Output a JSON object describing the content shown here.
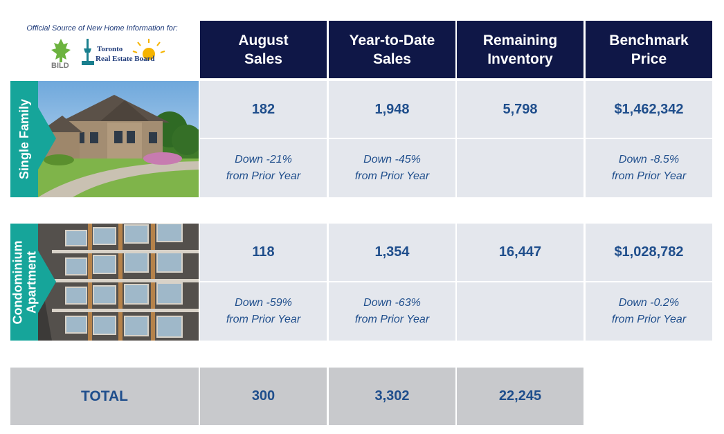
{
  "source_text": "Official Source of New Home Information for:",
  "logos": {
    "bild": "BILD",
    "treb_line1": "Toronto",
    "treb_line2": "Real Estate Board"
  },
  "headers": [
    {
      "line1": "August",
      "line2": "Sales"
    },
    {
      "line1": "Year-to-Date",
      "line2": "Sales"
    },
    {
      "line1": "Remaining",
      "line2": "Inventory"
    },
    {
      "line1": "Benchmark",
      "line2": "Price"
    }
  ],
  "rows": [
    {
      "label": "Single Family",
      "values": [
        "182",
        "1,948",
        "5,798",
        "$1,462,342"
      ],
      "changes": [
        {
          "line1": "Down -21%",
          "line2": "from Prior Year"
        },
        {
          "line1": "Down -45%",
          "line2": "from Prior Year"
        },
        {
          "line1": "",
          "line2": ""
        },
        {
          "line1": "Down -8.5%",
          "line2": "from Prior Year"
        }
      ]
    },
    {
      "label_line1": "Condominium",
      "label_line2": "Apartment",
      "values": [
        "118",
        "1,354",
        "16,447",
        "$1,028,782"
      ],
      "changes": [
        {
          "line1": "Down -59%",
          "line2": "from Prior Year"
        },
        {
          "line1": "Down -63%",
          "line2": "from Prior Year"
        },
        {
          "line1": "",
          "line2": ""
        },
        {
          "line1": "Down -0.2%",
          "line2": "from Prior Year"
        }
      ]
    }
  ],
  "total": {
    "label": "TOTAL",
    "values": [
      "300",
      "3,302",
      "22,245"
    ]
  },
  "colors": {
    "header_bg": "#0f1747",
    "cell_bg": "#e4e7ed",
    "accent_teal": "#16a59a",
    "value_text": "#1f4e8c",
    "total_bg": "#c8c9cc"
  }
}
